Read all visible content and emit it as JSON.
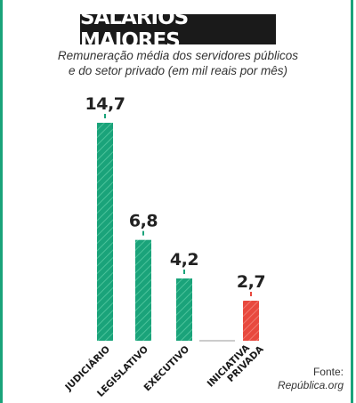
{
  "title": "SALÁRIOS MAIORES",
  "subtitle_lines": [
    "Remuneração média dos servidores públicos",
    "e do setor privado (em mil reais por mês)"
  ],
  "source_lines": [
    "Fonte:",
    "República.org"
  ],
  "colors": {
    "frame": "#1aa37a",
    "public": "#1aa37a",
    "private": "#e8493e",
    "value_text": "#222222",
    "divider": "#9a9a9a"
  },
  "chart_data": {
    "type": "bar",
    "categories": [
      "JUDICIÁRIO",
      "LEGISLATIVO",
      "EXECUTIVO",
      "INICIATIVA PRIVADA"
    ],
    "values": [
      14.7,
      6.8,
      4.2,
      2.7
    ],
    "value_labels": [
      "14,7",
      "6,8",
      "4,2",
      "2,7"
    ],
    "bar_colors": [
      "#1aa37a",
      "#1aa37a",
      "#1aa37a",
      "#e8493e"
    ],
    "ylim": [
      0,
      14.7
    ],
    "grid": false,
    "bar_style": "hatched"
  }
}
